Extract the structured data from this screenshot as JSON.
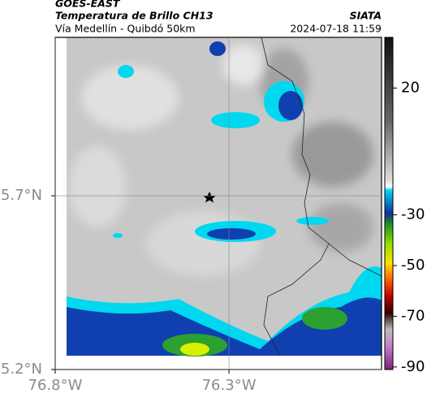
{
  "header": {
    "source": "GOES-EAST",
    "title": "Temperatura de Brillo CH13",
    "subtitle": "Vía Medellín - Quibdó 50km",
    "agency": "SIATA",
    "timestamp": "2024-07-18 11:59"
  },
  "map": {
    "xlim": [
      -76.8,
      -75.861
    ],
    "ylim": [
      5.2,
      6.156
    ],
    "xticks": [
      {
        "value": -76.8,
        "label": "76.8°W"
      },
      {
        "value": -76.3,
        "label": "76.3°W"
      }
    ],
    "yticks": [
      {
        "value": 5.7,
        "label": "5.7°N"
      },
      {
        "value": 5.2,
        "label": "5.2°N"
      }
    ]
  },
  "colorbar": {
    "lim": [
      -91,
      40
    ],
    "ticks": [
      20,
      -30,
      -50,
      -70,
      -90
    ]
  }
}
